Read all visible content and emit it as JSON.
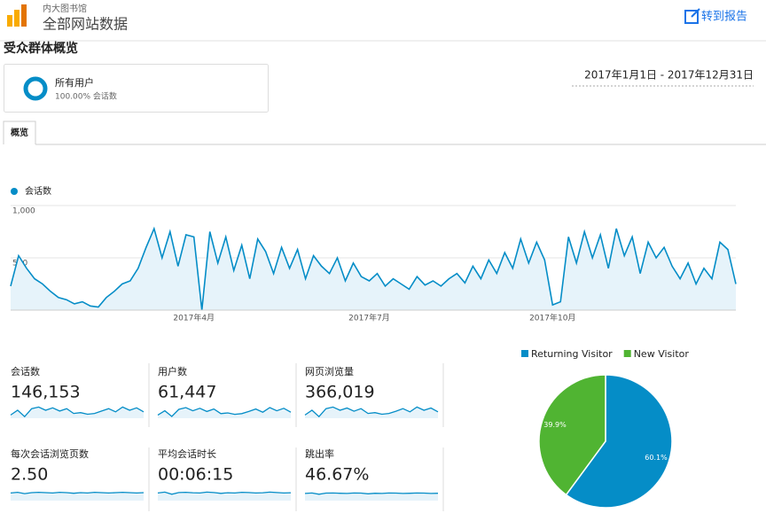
{
  "header": {
    "site": "内大图书馆",
    "view": "全部网站数据",
    "report_link": "转到报告"
  },
  "page_title": "受众群体概览",
  "segment": {
    "name": "所有用户",
    "detail": "100.00% 会话数"
  },
  "date_range": "2017年1月1日 - 2017年12月31日",
  "tab": "概览",
  "chart_data": [
    {
      "type": "line",
      "categories": [
        null,
        null,
        null,
        null,
        null,
        null,
        null,
        null,
        null,
        null,
        null,
        null,
        null,
        null,
        null,
        null,
        null,
        null,
        null,
        null,
        null,
        null,
        null,
        "2017年4月",
        null,
        null,
        null,
        null,
        null,
        null,
        null,
        null,
        null,
        null,
        null,
        null,
        null,
        null,
        null,
        null,
        null,
        null,
        null,
        null,
        null,
        "2017年7月",
        null,
        null,
        null,
        null,
        null,
        null,
        null,
        null,
        null,
        null,
        null,
        null,
        null,
        null,
        null,
        null,
        null,
        null,
        null,
        null,
        null,
        null,
        "2017年10月",
        null,
        null,
        null,
        null,
        null,
        null,
        null,
        null,
        null,
        null,
        null,
        null,
        null,
        null,
        null,
        null,
        null,
        null,
        null,
        null,
        null,
        null,
        null
      ],
      "series": [
        {
          "name": "会话数",
          "color": "#058dc7",
          "values": [
            230,
            520,
            400,
            300,
            250,
            180,
            120,
            100,
            60,
            80,
            40,
            30,
            120,
            180,
            250,
            280,
            400,
            600,
            780,
            500,
            750,
            420,
            720,
            700,
            0,
            750,
            450,
            700,
            380,
            620,
            300,
            680,
            560,
            350,
            600,
            400,
            580,
            300,
            520,
            420,
            350,
            500,
            280,
            450,
            320,
            280,
            350,
            230,
            300,
            250,
            200,
            320,
            240,
            280,
            230,
            300,
            350,
            260,
            420,
            300,
            480,
            350,
            550,
            400,
            680,
            450,
            650,
            480,
            50,
            80,
            700,
            450,
            750,
            500,
            720,
            400,
            780,
            520,
            700,
            350,
            650,
            500,
            600,
            420,
            300,
            450,
            250,
            400,
            300,
            650,
            580,
            250
          ]
        }
      ],
      "ylim": [
        0,
        1000
      ],
      "yticks": [
        500,
        {
          "value": 1000,
          "label": "1,000"
        }
      ],
      "grid": true
    },
    {
      "type": "sparkline",
      "title": "会话数",
      "summary": "146,153",
      "color": "#058dc7",
      "ylim": [
        0,
        1000
      ],
      "values": [
        200,
        500,
        100,
        600,
        700,
        500,
        650,
        450,
        600,
        300,
        350,
        250,
        300,
        450,
        600,
        400,
        700,
        500,
        650,
        400
      ]
    },
    {
      "type": "sparkline",
      "title": "用户数",
      "summary": "61,447",
      "color": "#058dc7",
      "ylim": [
        0,
        450
      ],
      "values": [
        90,
        210,
        50,
        250,
        300,
        210,
        280,
        190,
        260,
        130,
        150,
        110,
        130,
        190,
        260,
        170,
        300,
        210,
        280,
        170
      ]
    },
    {
      "type": "sparkline",
      "title": "网页浏览量",
      "summary": "366,019",
      "color": "#058dc7",
      "ylim": [
        0,
        2500
      ],
      "values": [
        500,
        1250,
        250,
        1500,
        1750,
        1250,
        1600,
        1100,
        1500,
        750,
        870,
        620,
        750,
        1100,
        1500,
        1000,
        1750,
        1250,
        1600,
        1000
      ]
    },
    {
      "type": "sparkline",
      "title": "每次会话浏览页数",
      "summary": "2.50",
      "color": "#058dc7",
      "ylim": [
        0,
        5
      ],
      "values": [
        2.4,
        2.6,
        2.2,
        2.5,
        2.6,
        2.5,
        2.4,
        2.6,
        2.5,
        2.3,
        2.5,
        2.4,
        2.6,
        2.5,
        2.4,
        2.5,
        2.6,
        2.5,
        2.4,
        2.5
      ]
    },
    {
      "type": "sparkline",
      "title": "平均会话时长",
      "summary": "00:06:15",
      "color": "#058dc7",
      "ylim": [
        0,
        750
      ],
      "values": [
        360,
        400,
        300,
        380,
        390,
        370,
        360,
        400,
        380,
        340,
        370,
        360,
        390,
        380,
        360,
        370,
        400,
        380,
        360,
        370
      ]
    },
    {
      "type": "sparkline",
      "title": "跳出率",
      "summary": "46.67%",
      "color": "#058dc7",
      "ylim": [
        0,
        100
      ],
      "values": [
        45,
        48,
        40,
        47,
        48,
        46,
        45,
        48,
        47,
        43,
        46,
        45,
        48,
        47,
        45,
        46,
        48,
        47,
        45,
        46
      ]
    },
    {
      "type": "pie",
      "categories": [
        "Returning Visitor",
        "New Visitor"
      ],
      "colors": [
        "#058dc7",
        "#50b432"
      ],
      "values": [
        60.1,
        39.9
      ],
      "value_labels": [
        "60.1%",
        "39.9%"
      ],
      "legend": "top"
    }
  ]
}
